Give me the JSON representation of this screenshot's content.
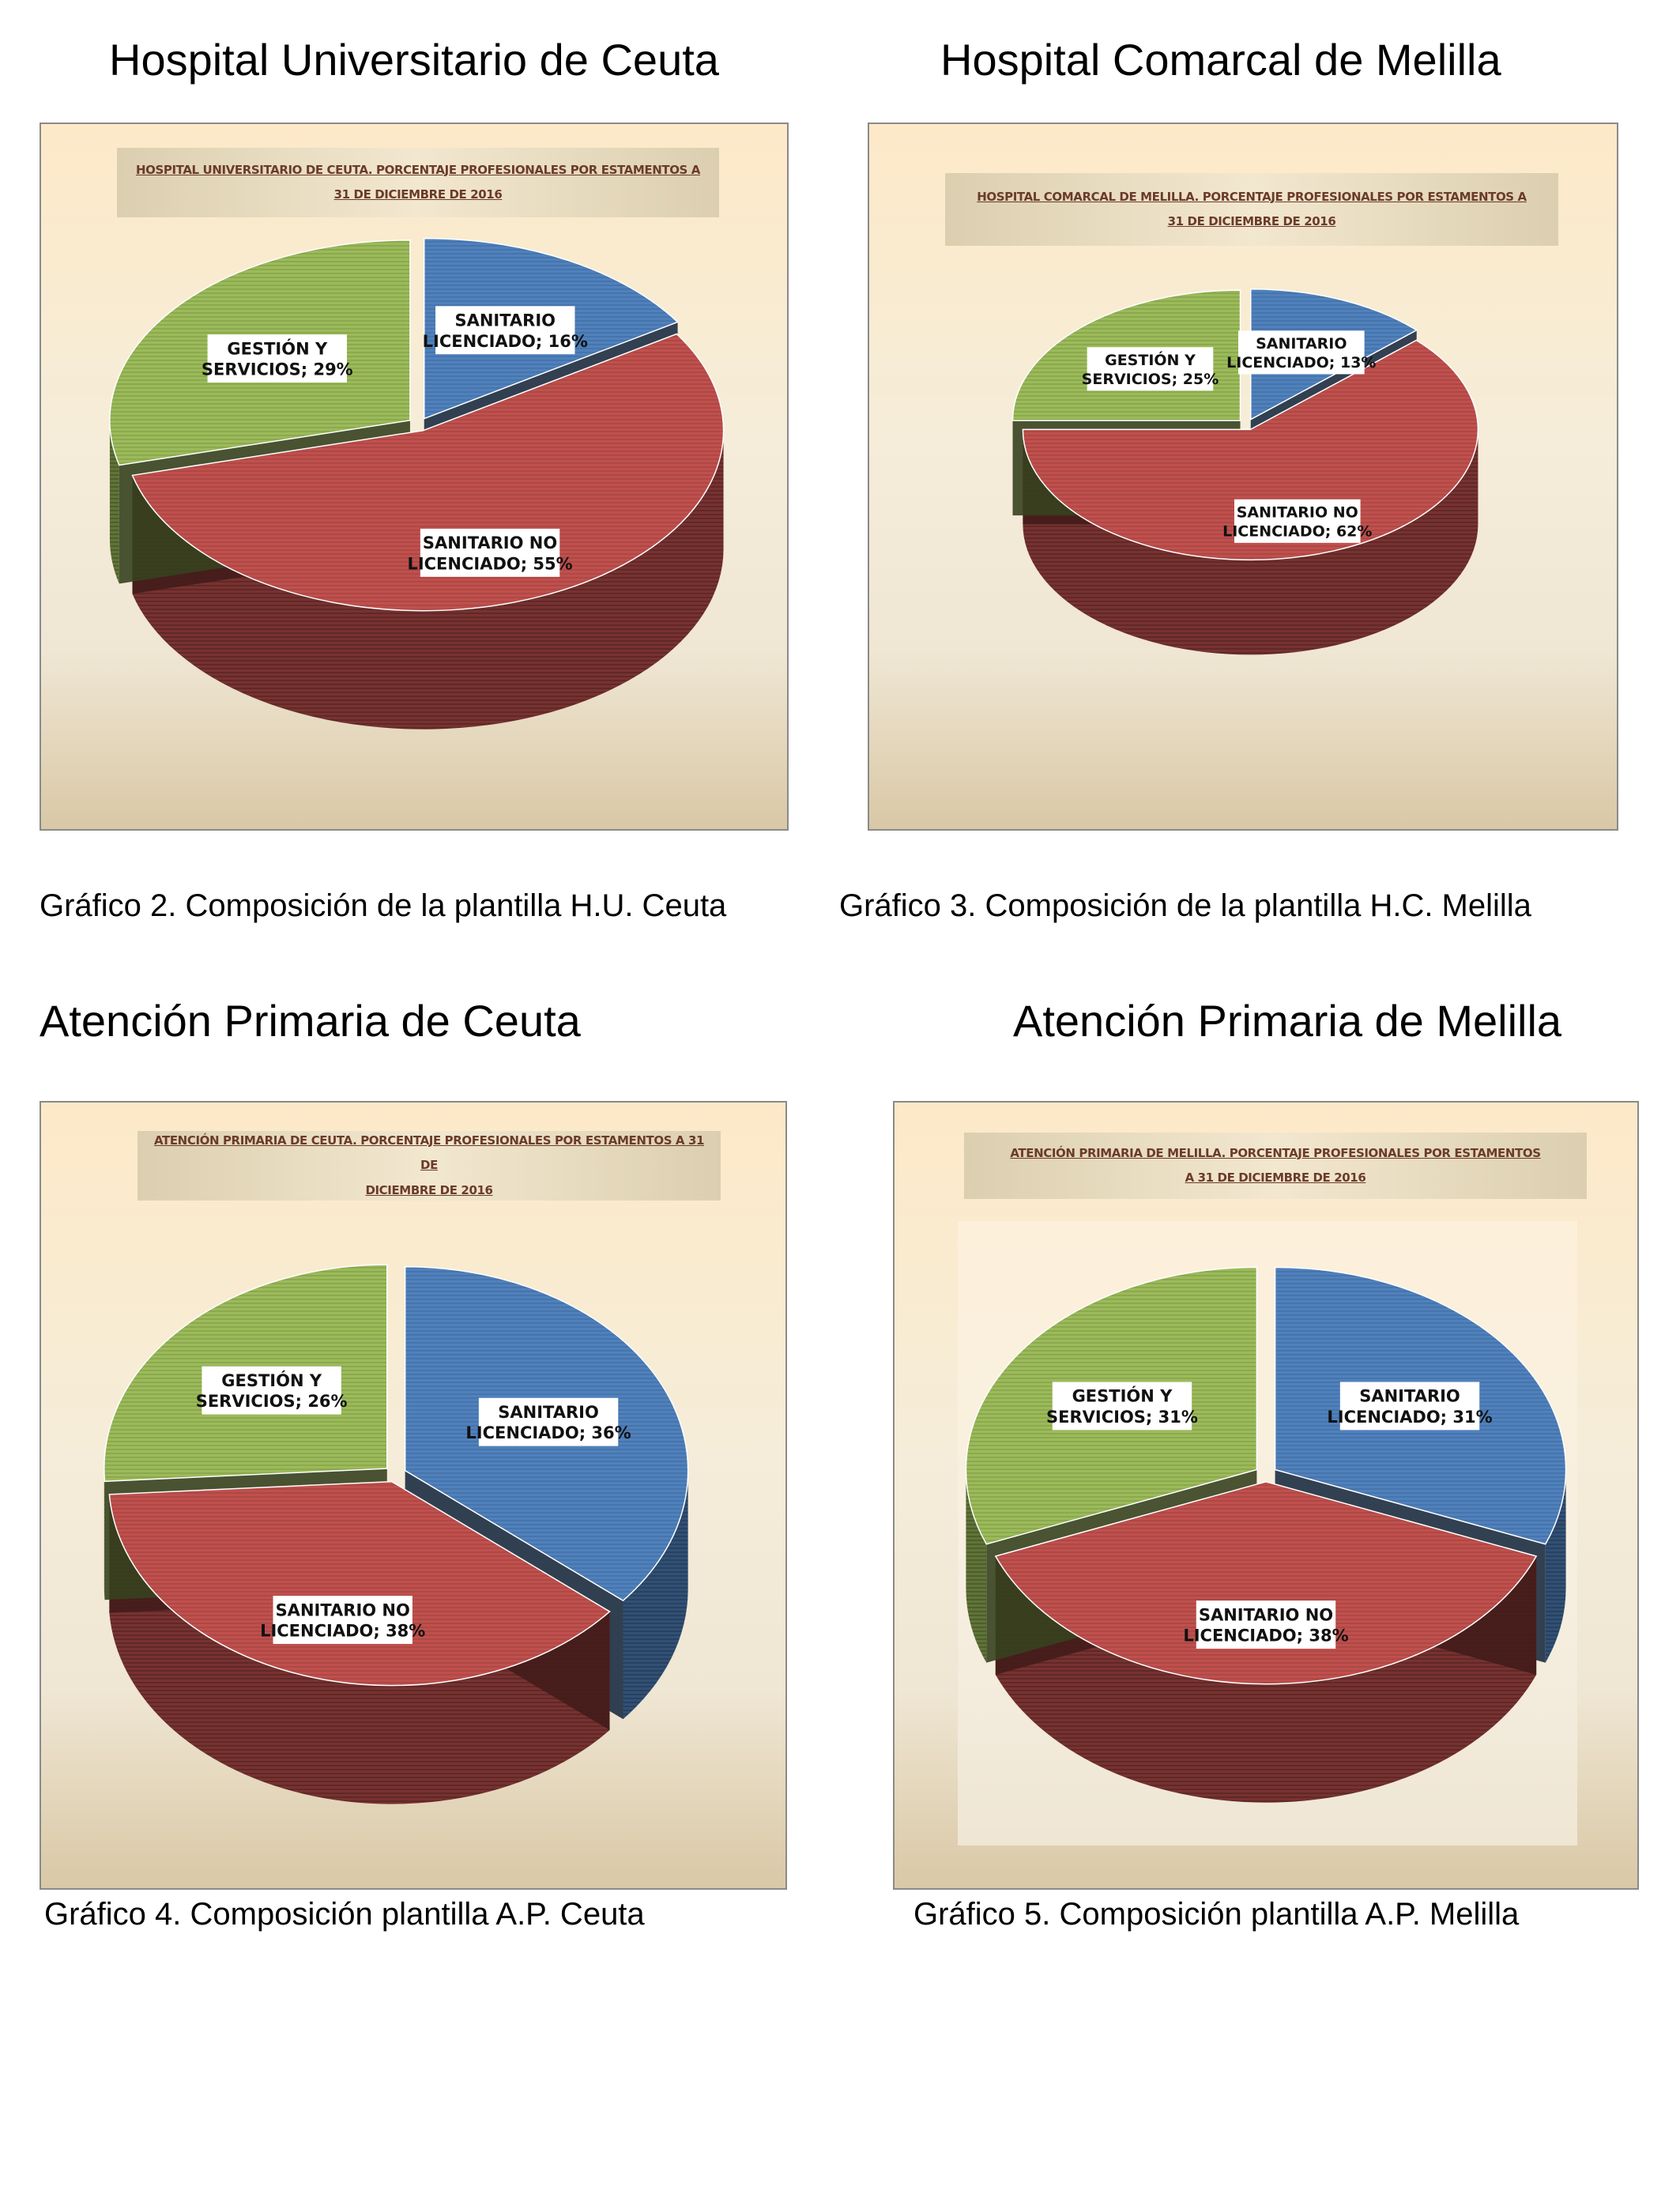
{
  "headings": {
    "hu_ceuta": "Hospital Universitario de Ceuta",
    "hc_melilla": "Hospital Comarcal de Melilla",
    "ap_ceuta": "Atención Primaria de Ceuta",
    "ap_melilla": "Atención Primaria de Melilla"
  },
  "captions": {
    "g2": "Gráfico 2. Composición de la plantilla H.U. Ceuta",
    "g3": "Gráfico 3. Composición de la plantilla H.C. Melilla",
    "g4": "Gráfico 4. Composición plantilla A.P. Ceuta",
    "g5": "Gráfico 5. Composición plantilla A.P. Melilla"
  },
  "colors": {
    "sanitario_licenciado": "#4f81bd",
    "sanitario_no_licenciado": "#c0504d",
    "gestion_y_servicios": "#9bbb59"
  },
  "chart_data": [
    {
      "type": "pie",
      "title_line1": "HOSPITAL UNIVERSITARIO DE CEUTA. PORCENTAJE PROFESIONALES POR ESTAMENTOS A",
      "title_line2": "31 DE DICIEMBRE DE 2016",
      "slices": [
        {
          "name": "SANITARIO LICENCIADO",
          "label_line1": "SANITARIO",
          "label_line2": "LICENCIADO; 16%",
          "value": 16
        },
        {
          "name": "SANITARIO NO LICENCIADO",
          "label_line1": "SANITARIO NO",
          "label_line2": "LICENCIADO; 55%",
          "value": 55
        },
        {
          "name": "GESTIÓN Y SERVICIOS",
          "label_line1": "GESTIÓN Y",
          "label_line2": "SERVICIOS; 29%",
          "value": 29
        }
      ]
    },
    {
      "type": "pie",
      "title_line1": "HOSPITAL COMARCAL DE MELILLA. PORCENTAJE PROFESIONALES POR ESTAMENTOS A",
      "title_line2": "31 DE DICIEMBRE DE 2016",
      "slices": [
        {
          "name": "SANITARIO LICENCIADO",
          "label_line1": "SANITARIO",
          "label_line2": "LICENCIADO; 13%",
          "value": 13
        },
        {
          "name": "SANITARIO NO LICENCIADO",
          "label_line1": "SANITARIO NO",
          "label_line2": "LICENCIADO; 62%",
          "value": 62
        },
        {
          "name": "GESTIÓN Y SERVICIOS",
          "label_line1": "GESTIÓN Y",
          "label_line2": "SERVICIOS; 25%",
          "value": 25
        }
      ]
    },
    {
      "type": "pie",
      "title_line1": "ATENCIÓN PRIMARIA DE CEUTA. PORCENTAJE PROFESIONALES POR ESTAMENTOS A 31 DE",
      "title_line2": "DICIEMBRE DE 2016",
      "slices": [
        {
          "name": "SANITARIO LICENCIADO",
          "label_line1": "SANITARIO",
          "label_line2": "LICENCIADO; 36%",
          "value": 36
        },
        {
          "name": "SANITARIO NO LICENCIADO",
          "label_line1": "SANITARIO NO",
          "label_line2": "LICENCIADO; 38%",
          "value": 38
        },
        {
          "name": "GESTIÓN Y SERVICIOS",
          "label_line1": "GESTIÓN Y",
          "label_line2": "SERVICIOS; 26%",
          "value": 26
        }
      ]
    },
    {
      "type": "pie",
      "title_line1": "ATENCIÓN PRIMARIA DE MELILLA. PORCENTAJE PROFESIONALES POR ESTAMENTOS",
      "title_line2": "A 31 DE DICIEMBRE DE 2016",
      "slices": [
        {
          "name": "SANITARIO LICENCIADO",
          "label_line1": "SANITARIO",
          "label_line2": "LICENCIADO; 31%",
          "value": 31
        },
        {
          "name": "SANITARIO NO LICENCIADO",
          "label_line1": "SANITARIO NO",
          "label_line2": "LICENCIADO; 38%",
          "value": 38
        },
        {
          "name": "GESTIÓN Y SERVICIOS",
          "label_line1": "GESTIÓN Y",
          "label_line2": "SERVICIOS; 31%",
          "value": 31
        }
      ]
    }
  ]
}
